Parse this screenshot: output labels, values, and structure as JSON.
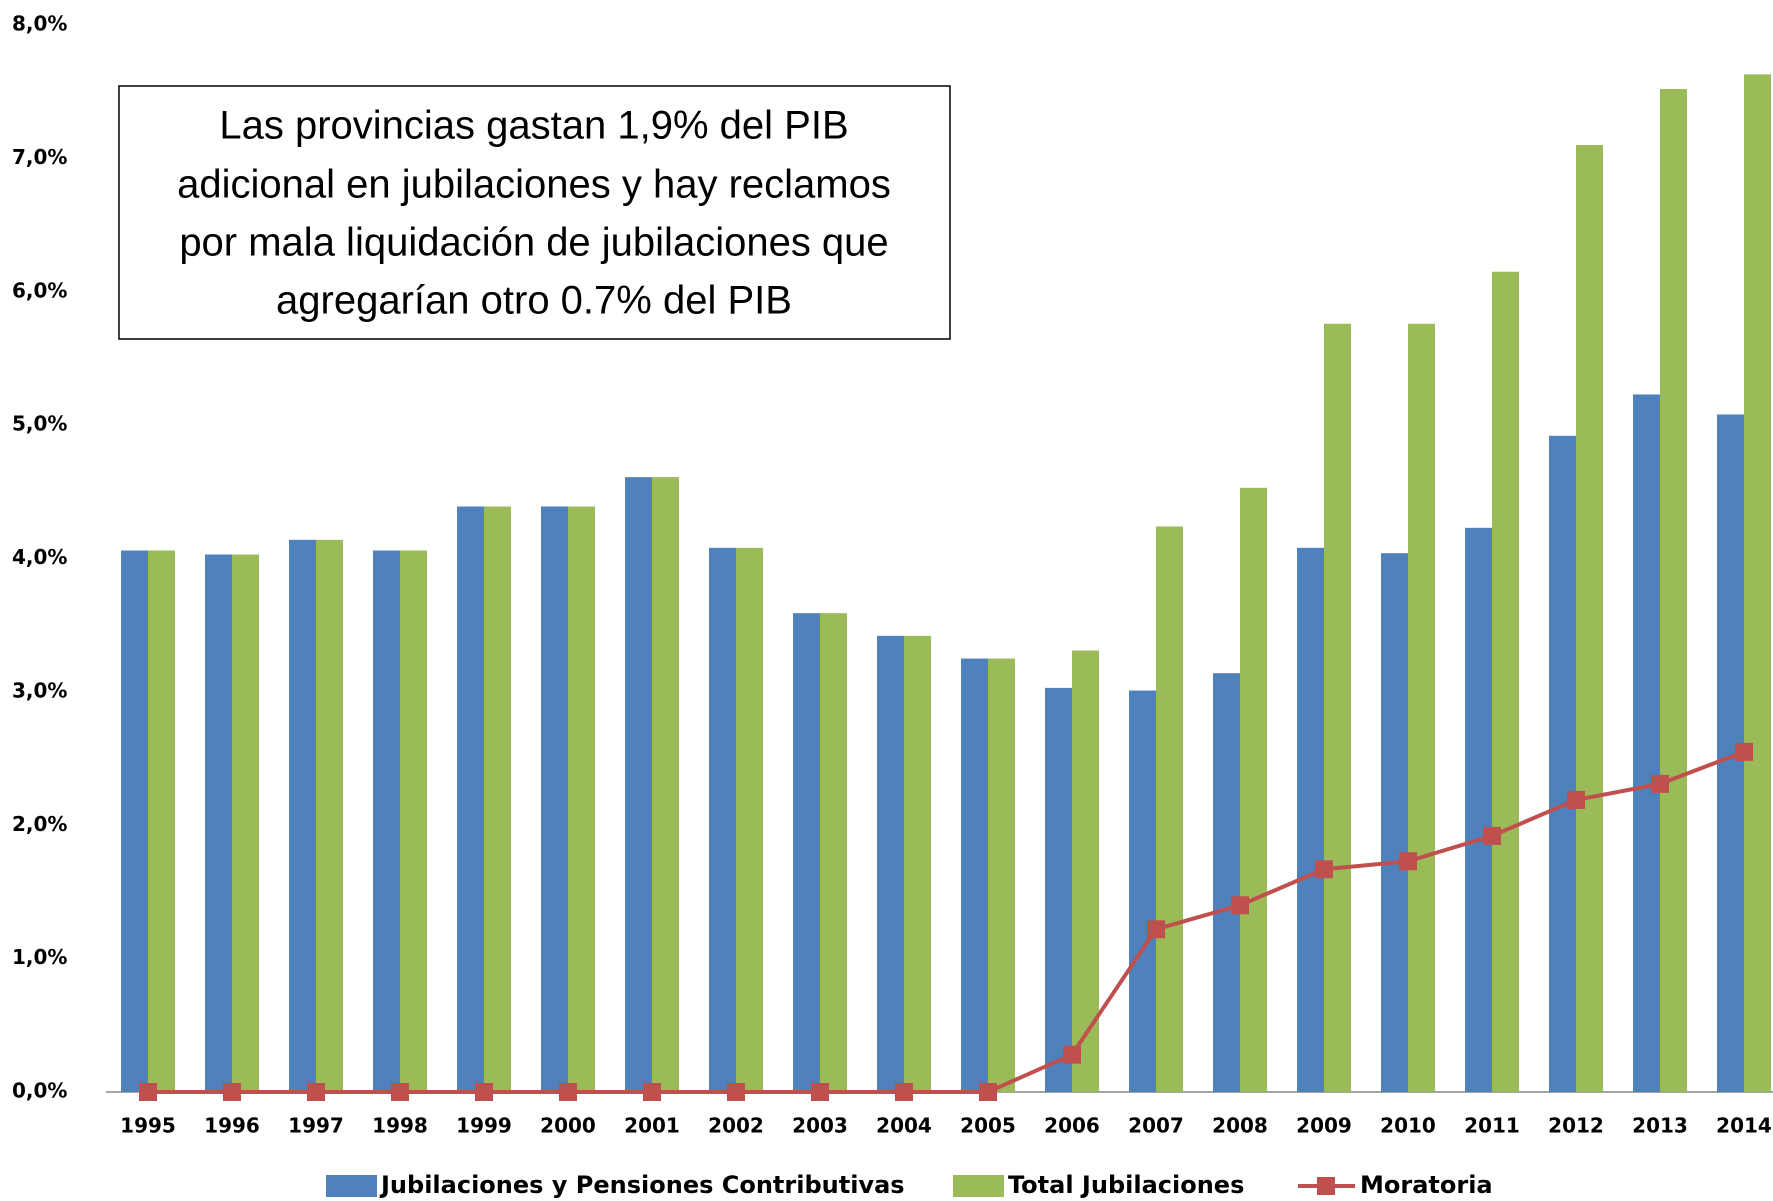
{
  "chart_data": {
    "type": "bar_line",
    "annotation": [
      "Las provincias gastan 1,9% del PIB",
      "adicional en jubilaciones y hay reclamos",
      "por mala liquidación de jubilaciones que",
      "agregarían otro 0.7% del PIB"
    ],
    "categories": [
      "1995",
      "1996",
      "1997",
      "1998",
      "1999",
      "2000",
      "2001",
      "2002",
      "2003",
      "2004",
      "2005",
      "2006",
      "2007",
      "2008",
      "2009",
      "2010",
      "2011",
      "2012",
      "2013",
      "2014"
    ],
    "series": [
      {
        "name": "Jubilaciones y Pensiones Contributivas",
        "type": "bar",
        "color": "#4f81bd",
        "values": [
          4.06,
          4.03,
          4.14,
          4.06,
          4.39,
          4.39,
          4.61,
          4.08,
          3.59,
          3.42,
          3.25,
          3.03,
          3.01,
          3.14,
          4.08,
          4.04,
          4.23,
          4.92,
          5.23,
          5.08
        ]
      },
      {
        "name": "Total Jubilaciones",
        "type": "bar",
        "color": "#9bbb59",
        "values": [
          4.06,
          4.03,
          4.14,
          4.06,
          4.39,
          4.39,
          4.61,
          4.08,
          3.59,
          3.42,
          3.25,
          3.31,
          4.24,
          4.53,
          5.76,
          5.76,
          6.15,
          7.1,
          7.52,
          7.63
        ]
      },
      {
        "name": "Moratoria",
        "type": "line",
        "color": "#c0504d",
        "values": [
          0,
          0,
          0,
          0,
          0,
          0,
          0,
          0,
          0,
          0,
          0,
          0.28,
          1.22,
          1.4,
          1.67,
          1.73,
          1.92,
          2.19,
          2.31,
          2.55
        ]
      }
    ],
    "ylim": [
      0,
      8
    ],
    "yticks": [
      {
        "value": 0,
        "label": "0,0%"
      },
      {
        "value": 1,
        "label": "1,0%"
      },
      {
        "value": 2,
        "label": "2,0%"
      },
      {
        "value": 3,
        "label": "3,0%"
      },
      {
        "value": 4,
        "label": "4,0%"
      },
      {
        "value": 5,
        "label": "5,0%"
      },
      {
        "value": 6,
        "label": "6,0%"
      },
      {
        "value": 7,
        "label": "7,0%"
      },
      {
        "value": 8,
        "label": "8,0%"
      }
    ],
    "grid": false,
    "legend": "bottom"
  }
}
